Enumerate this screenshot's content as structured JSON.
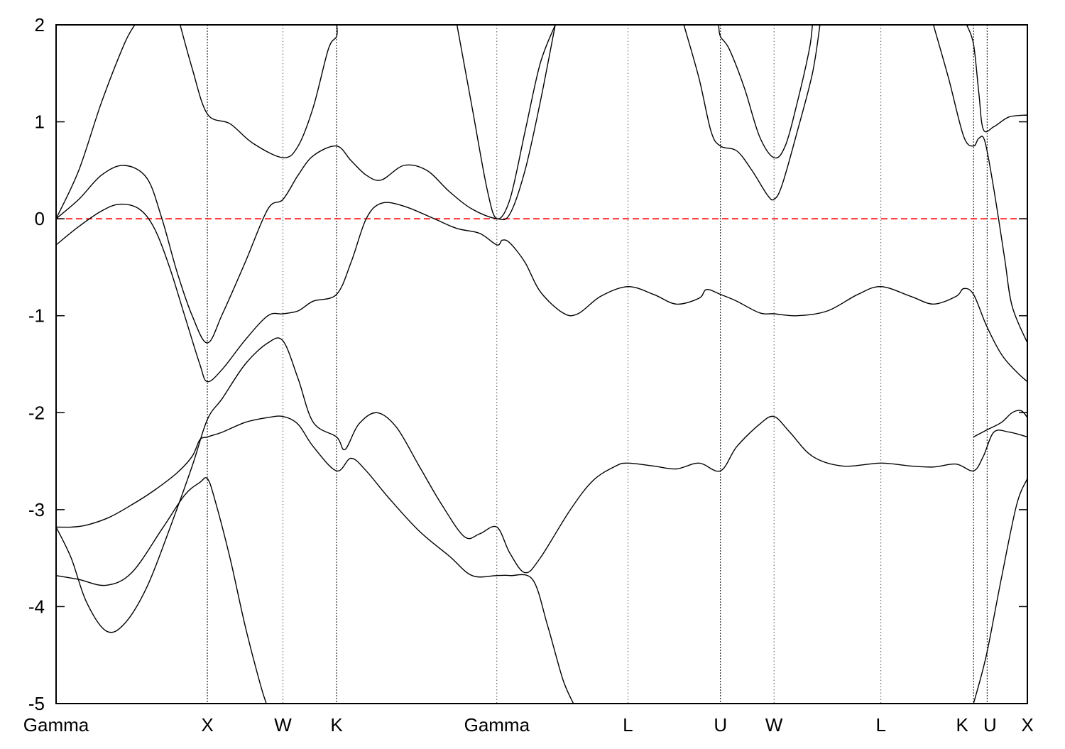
{
  "chart_data": {
    "type": "line",
    "title": "",
    "xlabel": "",
    "ylabel": "",
    "ylim": [
      -5,
      2
    ],
    "yticks": [
      "2",
      "1",
      "0",
      "-1",
      "-2",
      "-3",
      "-4",
      "-5"
    ],
    "grid": false,
    "fermi_level": {
      "y": 0,
      "color": "#ff0000",
      "style": "dashed"
    },
    "line_color": "#000000",
    "kpoints": [
      {
        "label": "Gamma",
        "x": 0.0
      },
      {
        "label": "X",
        "x": 1.0
      },
      {
        "label": "W",
        "x": 1.5
      },
      {
        "label": "K",
        "x": 1.854
      },
      {
        "label": "Gamma",
        "x": 2.914
      },
      {
        "label": "L",
        "x": 3.78
      },
      {
        "label": "U",
        "x": 4.392
      },
      {
        "label": "W",
        "x": 4.746
      },
      {
        "label": "L",
        "x": 5.453
      },
      {
        "label": "K",
        "x": 6.065
      },
      {
        "label": "U",
        "x": 6.155
      },
      {
        "label": "X",
        "x": 6.421
      }
    ],
    "xlim": [
      0,
      6.421
    ],
    "series": [
      {
        "values": [
          [
            0.0,
            -3.18
          ],
          [
            0.1,
            -3.18
          ],
          [
            0.2,
            -3.16
          ],
          [
            0.35,
            -3.08
          ],
          [
            0.5,
            -2.95
          ],
          [
            0.65,
            -2.8
          ],
          [
            0.8,
            -2.62
          ],
          [
            0.9,
            -2.45
          ],
          [
            0.95,
            -2.28
          ],
          [
            1.0,
            -2.25
          ],
          [
            1.1,
            -2.2
          ],
          [
            1.25,
            -2.1
          ],
          [
            1.4,
            -2.05
          ],
          [
            1.5,
            -2.04
          ],
          [
            1.6,
            -2.12
          ],
          [
            1.7,
            -2.35
          ],
          [
            1.854,
            -2.6
          ],
          [
            1.95,
            -2.47
          ],
          [
            2.05,
            -2.6
          ],
          [
            2.2,
            -2.88
          ],
          [
            2.4,
            -3.22
          ],
          [
            2.6,
            -3.48
          ],
          [
            2.75,
            -3.68
          ],
          [
            2.914,
            -3.68
          ],
          [
            3.0,
            -3.68
          ],
          [
            3.15,
            -3.72
          ],
          [
            3.25,
            -4.2
          ],
          [
            3.35,
            -4.75
          ],
          [
            3.42,
            -5.0
          ]
        ]
      },
      {
        "values": [
          [
            0.0,
            -3.68
          ],
          [
            0.15,
            -3.72
          ],
          [
            0.33,
            -3.78
          ],
          [
            0.5,
            -3.65
          ],
          [
            0.7,
            -3.2
          ],
          [
            0.85,
            -2.85
          ],
          [
            0.95,
            -2.72
          ],
          [
            1.0,
            -2.68
          ],
          [
            1.05,
            -2.9
          ],
          [
            1.15,
            -3.5
          ],
          [
            1.25,
            -4.2
          ],
          [
            1.35,
            -4.8
          ],
          [
            1.39,
            -5.0
          ]
        ]
      },
      {
        "values": [
          [
            0.0,
            -3.18
          ],
          [
            0.1,
            -3.5
          ],
          [
            0.2,
            -3.95
          ],
          [
            0.33,
            -4.25
          ],
          [
            0.45,
            -4.18
          ],
          [
            0.6,
            -3.8
          ],
          [
            0.75,
            -3.2
          ],
          [
            0.9,
            -2.55
          ],
          [
            1.0,
            -2.07
          ],
          [
            1.1,
            -1.85
          ],
          [
            1.25,
            -1.5
          ],
          [
            1.4,
            -1.28
          ],
          [
            1.5,
            -1.26
          ],
          [
            1.6,
            -1.65
          ],
          [
            1.7,
            -2.1
          ],
          [
            1.854,
            -2.25
          ],
          [
            1.91,
            -2.38
          ],
          [
            2.0,
            -2.12
          ],
          [
            2.12,
            -2.0
          ],
          [
            2.25,
            -2.15
          ],
          [
            2.4,
            -2.55
          ],
          [
            2.55,
            -2.95
          ],
          [
            2.7,
            -3.28
          ],
          [
            2.8,
            -3.25
          ],
          [
            2.914,
            -3.18
          ],
          [
            3.0,
            -3.45
          ],
          [
            3.1,
            -3.65
          ],
          [
            3.2,
            -3.5
          ],
          [
            3.4,
            -3.0
          ],
          [
            3.55,
            -2.7
          ],
          [
            3.7,
            -2.55
          ],
          [
            3.78,
            -2.52
          ],
          [
            3.95,
            -2.55
          ],
          [
            4.1,
            -2.58
          ],
          [
            4.25,
            -2.52
          ],
          [
            4.392,
            -2.6
          ],
          [
            4.5,
            -2.35
          ],
          [
            4.65,
            -2.12
          ],
          [
            4.746,
            -2.04
          ],
          [
            4.85,
            -2.2
          ],
          [
            5.0,
            -2.45
          ],
          [
            5.2,
            -2.55
          ],
          [
            5.453,
            -2.52
          ],
          [
            5.65,
            -2.55
          ],
          [
            5.8,
            -2.56
          ],
          [
            5.95,
            -2.53
          ],
          [
            6.065,
            -2.6
          ],
          [
            6.13,
            -2.45
          ],
          [
            6.2,
            -2.2
          ],
          [
            6.3,
            -2.2
          ],
          [
            6.421,
            -2.25
          ]
        ]
      },
      {
        "values": [
          [
            0.0,
            -0.27
          ],
          [
            0.15,
            -0.08
          ],
          [
            0.3,
            0.08
          ],
          [
            0.42,
            0.15
          ],
          [
            0.55,
            0.1
          ],
          [
            0.65,
            -0.1
          ],
          [
            0.75,
            -0.5
          ],
          [
            0.85,
            -1.0
          ],
          [
            0.95,
            -1.5
          ],
          [
            1.0,
            -1.68
          ],
          [
            1.1,
            -1.55
          ],
          [
            1.25,
            -1.25
          ],
          [
            1.4,
            -1.0
          ],
          [
            1.5,
            -0.98
          ],
          [
            1.6,
            -0.95
          ],
          [
            1.7,
            -0.85
          ],
          [
            1.854,
            -0.78
          ],
          [
            1.95,
            -0.45
          ],
          [
            2.05,
            0.0
          ],
          [
            2.15,
            0.16
          ],
          [
            2.3,
            0.13
          ],
          [
            2.5,
            0.0
          ],
          [
            2.65,
            -0.1
          ],
          [
            2.8,
            -0.15
          ],
          [
            2.914,
            -0.27
          ],
          [
            2.95,
            -0.22
          ],
          [
            3.0,
            -0.25
          ],
          [
            3.1,
            -0.45
          ],
          [
            3.2,
            -0.75
          ],
          [
            3.35,
            -0.97
          ],
          [
            3.45,
            -0.98
          ],
          [
            3.6,
            -0.8
          ],
          [
            3.78,
            -0.7
          ],
          [
            3.95,
            -0.78
          ],
          [
            4.1,
            -0.88
          ],
          [
            4.25,
            -0.82
          ],
          [
            4.3,
            -0.73
          ],
          [
            4.392,
            -0.78
          ],
          [
            4.5,
            -0.85
          ],
          [
            4.65,
            -0.97
          ],
          [
            4.746,
            -0.98
          ],
          [
            4.9,
            -1.0
          ],
          [
            5.1,
            -0.95
          ],
          [
            5.3,
            -0.78
          ],
          [
            5.453,
            -0.7
          ],
          [
            5.65,
            -0.8
          ],
          [
            5.8,
            -0.88
          ],
          [
            5.95,
            -0.8
          ],
          [
            6.0,
            -0.72
          ],
          [
            6.065,
            -0.78
          ],
          [
            6.15,
            -1.1
          ],
          [
            6.25,
            -1.4
          ],
          [
            6.35,
            -1.58
          ],
          [
            6.421,
            -1.68
          ]
        ]
      },
      {
        "values": [
          [
            0.0,
            0.0
          ],
          [
            0.15,
            0.2
          ],
          [
            0.3,
            0.45
          ],
          [
            0.45,
            0.55
          ],
          [
            0.6,
            0.42
          ],
          [
            0.7,
            0.0
          ],
          [
            0.8,
            -0.55
          ],
          [
            0.9,
            -1.0
          ],
          [
            1.0,
            -1.28
          ],
          [
            1.1,
            -0.98
          ],
          [
            1.25,
            -0.45
          ],
          [
            1.4,
            0.1
          ],
          [
            1.5,
            0.2
          ],
          [
            1.6,
            0.45
          ],
          [
            1.7,
            0.65
          ],
          [
            1.854,
            0.75
          ],
          [
            1.95,
            0.6
          ],
          [
            2.05,
            0.45
          ],
          [
            2.15,
            0.4
          ],
          [
            2.3,
            0.55
          ],
          [
            2.45,
            0.5
          ],
          [
            2.6,
            0.28
          ],
          [
            2.75,
            0.1
          ],
          [
            2.914,
            0.0
          ],
          [
            3.0,
            0.05
          ],
          [
            3.1,
            0.5
          ],
          [
            3.2,
            1.2
          ],
          [
            3.3,
            2.0
          ]
        ]
      },
      {
        "values": [
          [
            0.0,
            0.0
          ],
          [
            0.15,
            0.5
          ],
          [
            0.3,
            1.2
          ],
          [
            0.45,
            1.8
          ],
          [
            0.52,
            2.0
          ]
        ]
      },
      {
        "values": [
          [
            0.82,
            2.0
          ],
          [
            0.9,
            1.55
          ],
          [
            1.0,
            1.08
          ],
          [
            1.15,
            0.98
          ],
          [
            1.3,
            0.78
          ],
          [
            1.5,
            0.63
          ],
          [
            1.6,
            0.75
          ],
          [
            1.7,
            1.15
          ],
          [
            1.8,
            1.75
          ],
          [
            1.854,
            1.88
          ],
          [
            1.856,
            2.0
          ]
        ]
      },
      {
        "values": [
          [
            2.65,
            2.0
          ],
          [
            2.75,
            1.15
          ],
          [
            2.85,
            0.3
          ],
          [
            2.914,
            0.0
          ],
          [
            3.0,
            0.2
          ],
          [
            3.1,
            0.9
          ],
          [
            3.2,
            1.6
          ],
          [
            3.3,
            2.0
          ]
        ]
      },
      {
        "values": [
          [
            4.15,
            2.0
          ],
          [
            4.25,
            1.45
          ],
          [
            4.33,
            0.9
          ],
          [
            4.392,
            0.75
          ],
          [
            4.5,
            0.7
          ],
          [
            4.6,
            0.5
          ],
          [
            4.7,
            0.25
          ],
          [
            4.746,
            0.2
          ],
          [
            4.8,
            0.35
          ],
          [
            4.9,
            0.9
          ],
          [
            5.0,
            1.5
          ],
          [
            5.05,
            2.0
          ]
        ]
      },
      {
        "values": [
          [
            4.38,
            2.0
          ],
          [
            4.392,
            1.88
          ],
          [
            4.45,
            1.75
          ],
          [
            4.55,
            1.35
          ],
          [
            4.65,
            0.85
          ],
          [
            4.746,
            0.63
          ],
          [
            4.82,
            0.75
          ],
          [
            4.9,
            1.2
          ],
          [
            4.98,
            1.75
          ],
          [
            5.0,
            2.0
          ]
        ]
      },
      {
        "values": [
          [
            5.8,
            2.0
          ],
          [
            5.9,
            1.45
          ],
          [
            6.0,
            0.85
          ],
          [
            6.065,
            0.75
          ],
          [
            6.1,
            0.83
          ],
          [
            6.14,
            0.8
          ],
          [
            6.2,
            0.3
          ],
          [
            6.27,
            -0.4
          ],
          [
            6.32,
            -0.9
          ],
          [
            6.421,
            -1.28
          ]
        ]
      },
      {
        "values": [
          [
            6.02,
            2.0
          ],
          [
            6.065,
            1.8
          ],
          [
            6.1,
            1.3
          ],
          [
            6.13,
            0.92
          ],
          [
            6.2,
            0.95
          ],
          [
            6.3,
            1.05
          ],
          [
            6.421,
            1.07
          ]
        ]
      },
      {
        "values": [
          [
            6.065,
            -5.0
          ],
          [
            6.15,
            -4.5
          ],
          [
            6.25,
            -3.7
          ],
          [
            6.35,
            -2.95
          ],
          [
            6.421,
            -2.68
          ]
        ]
      },
      {
        "values": [
          [
            6.065,
            -2.25
          ],
          [
            6.15,
            -2.18
          ],
          [
            6.25,
            -2.1
          ],
          [
            6.32,
            -2.0
          ],
          [
            6.38,
            -1.98
          ],
          [
            6.421,
            -2.05
          ]
        ]
      }
    ]
  }
}
